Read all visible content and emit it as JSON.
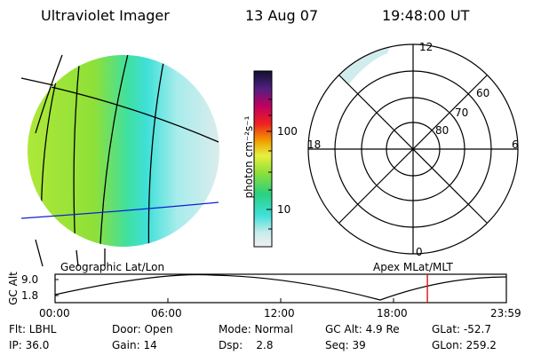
{
  "header": {
    "instrument": "Ultraviolet Imager",
    "date": "13 Aug 07",
    "time": "19:48:00 UT"
  },
  "colorbar": {
    "unit_label": "photon cm⁻²s⁻¹",
    "ticks": [
      "100",
      "10"
    ]
  },
  "polar_plot": {
    "mlt_labels": {
      "top": "12",
      "left": "18",
      "right": "6",
      "bottom": "0"
    },
    "lat_labels": [
      "60",
      "70",
      "80"
    ]
  },
  "subtitles": {
    "left": "Geographic Lat/Lon",
    "right": "Apex MLat/MLT"
  },
  "timeline": {
    "y_axis_label": "GC Alt",
    "y_ticks": [
      "9.0",
      "1.8"
    ],
    "x_ticks": [
      "00:00",
      "06:00",
      "12:00",
      "18:00",
      "23:59"
    ],
    "current_time_fraction": 0.825
  },
  "info": {
    "row1": {
      "flt": "Flt: LBHL",
      "door": "Door: Open",
      "mode": "Mode: Normal",
      "gcalt": "GC Alt: 4.9 Re",
      "glat": "GLat: -52.7"
    },
    "row2": {
      "ip": "IP: 36.0",
      "gain": "Gain: 14",
      "dsp": "Dsp:    2.8",
      "seq": "Seq: 39",
      "glon": "GLon: 259.2"
    }
  },
  "colors": {
    "auroral_green": "#8ee038",
    "cyan": "#3ee0d8",
    "pale": "#d8ecec",
    "blue_line": "#1020d0",
    "red_marker": "#e01010"
  }
}
